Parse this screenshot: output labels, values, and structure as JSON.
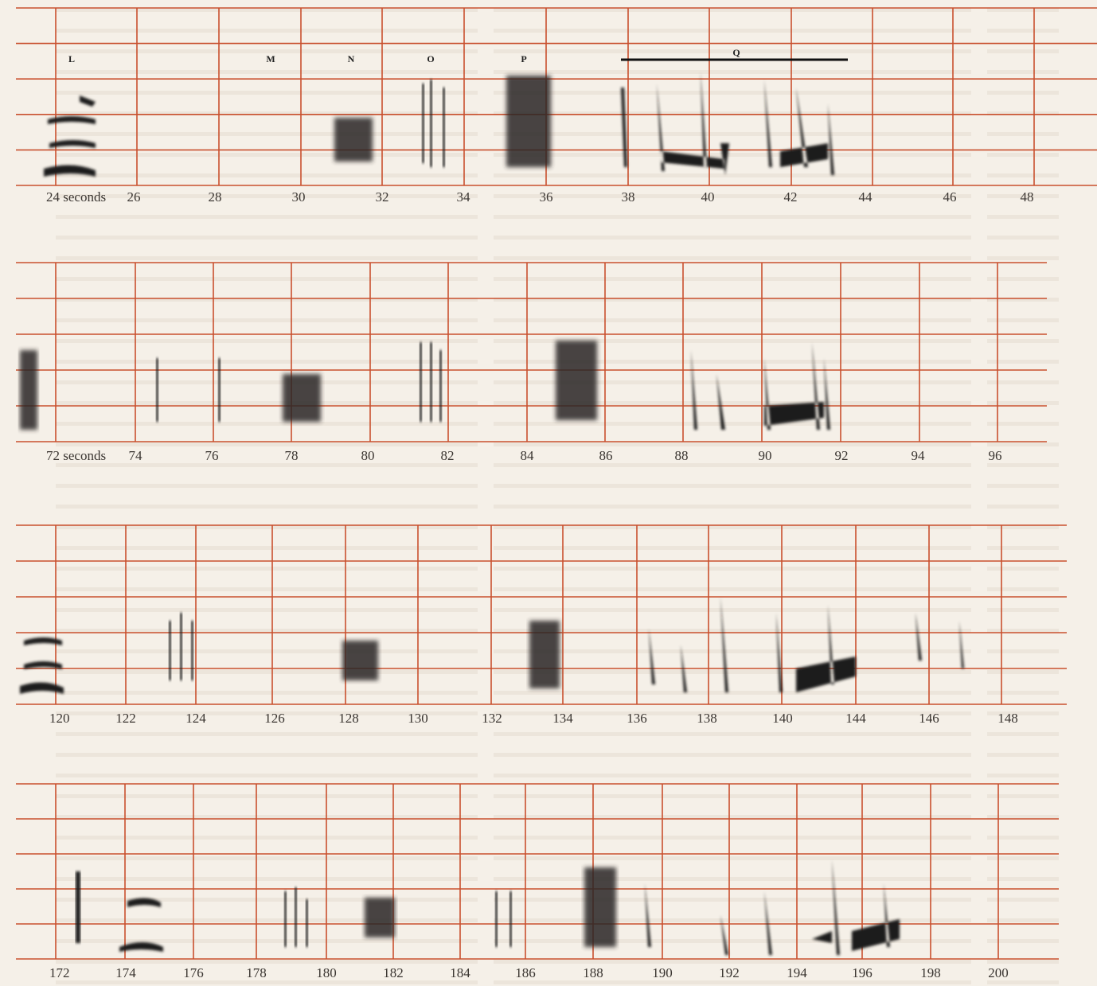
{
  "figure": {
    "markers": [
      "L",
      "M",
      "N",
      "O",
      "P",
      "Q"
    ],
    "panels": [
      {
        "ticks": [
          "24 seconds",
          "26",
          "28",
          "30",
          "32",
          "34",
          "36",
          "38",
          "40",
          "42",
          "44",
          "46",
          "48"
        ]
      },
      {
        "ticks": [
          "72 seconds",
          "74",
          "76",
          "78",
          "80",
          "82",
          "84",
          "86",
          "88",
          "90",
          "92",
          "94",
          "96"
        ]
      },
      {
        "ticks": [
          "120",
          "122",
          "124",
          "126",
          "128",
          "130",
          "132",
          "134",
          "136",
          "138",
          "140",
          "144",
          "146",
          "148"
        ]
      },
      {
        "ticks": [
          "172",
          "174",
          "176",
          "178",
          "180",
          "182",
          "184",
          "186",
          "188",
          "190",
          "192",
          "194",
          "196",
          "198",
          "200"
        ]
      }
    ]
  }
}
